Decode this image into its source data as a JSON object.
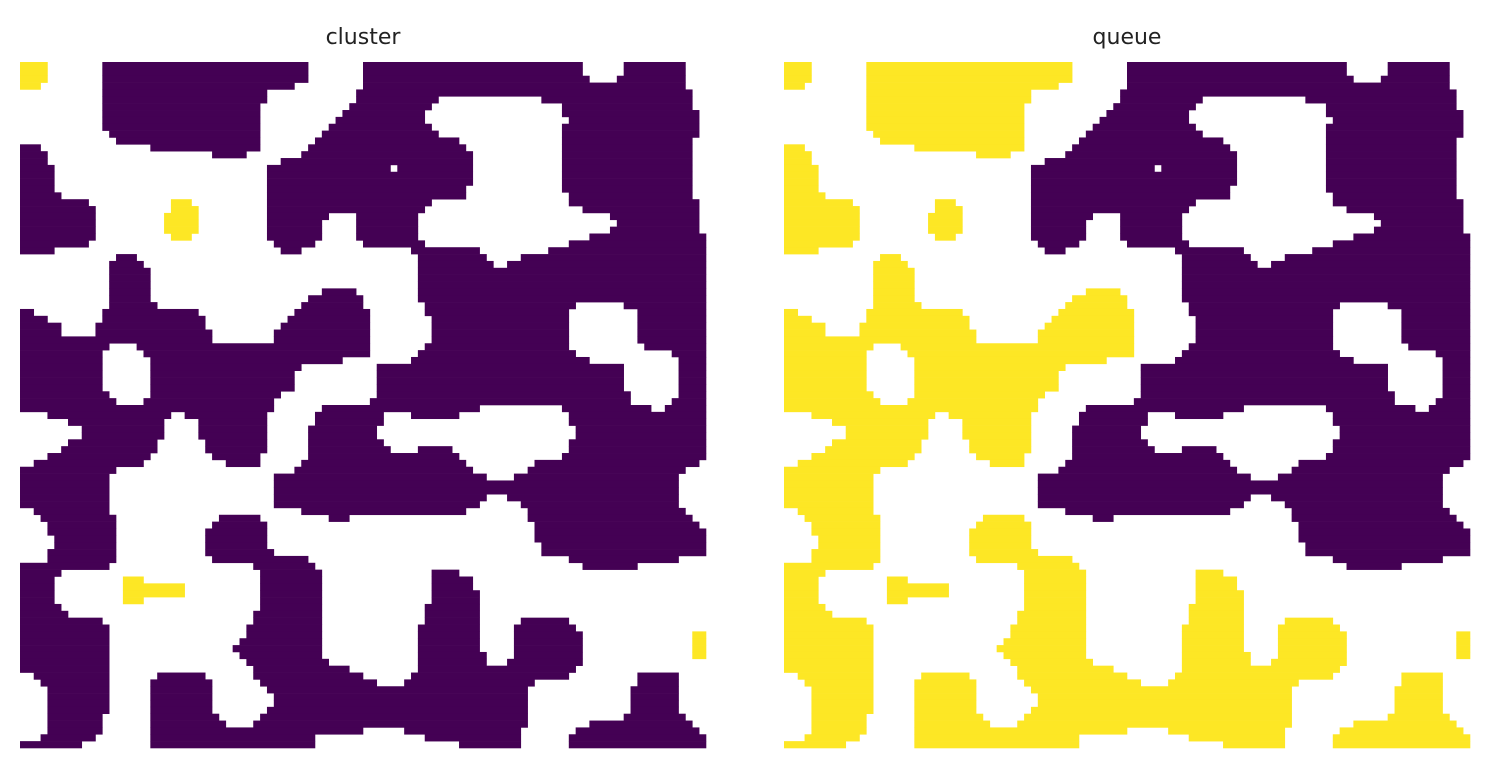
{
  "chart_data": {
    "type": "image",
    "panels": [
      {
        "title": "cluster"
      },
      {
        "title": "queue"
      }
    ],
    "colors": [
      "#440154",
      "#fde725"
    ]
  }
}
